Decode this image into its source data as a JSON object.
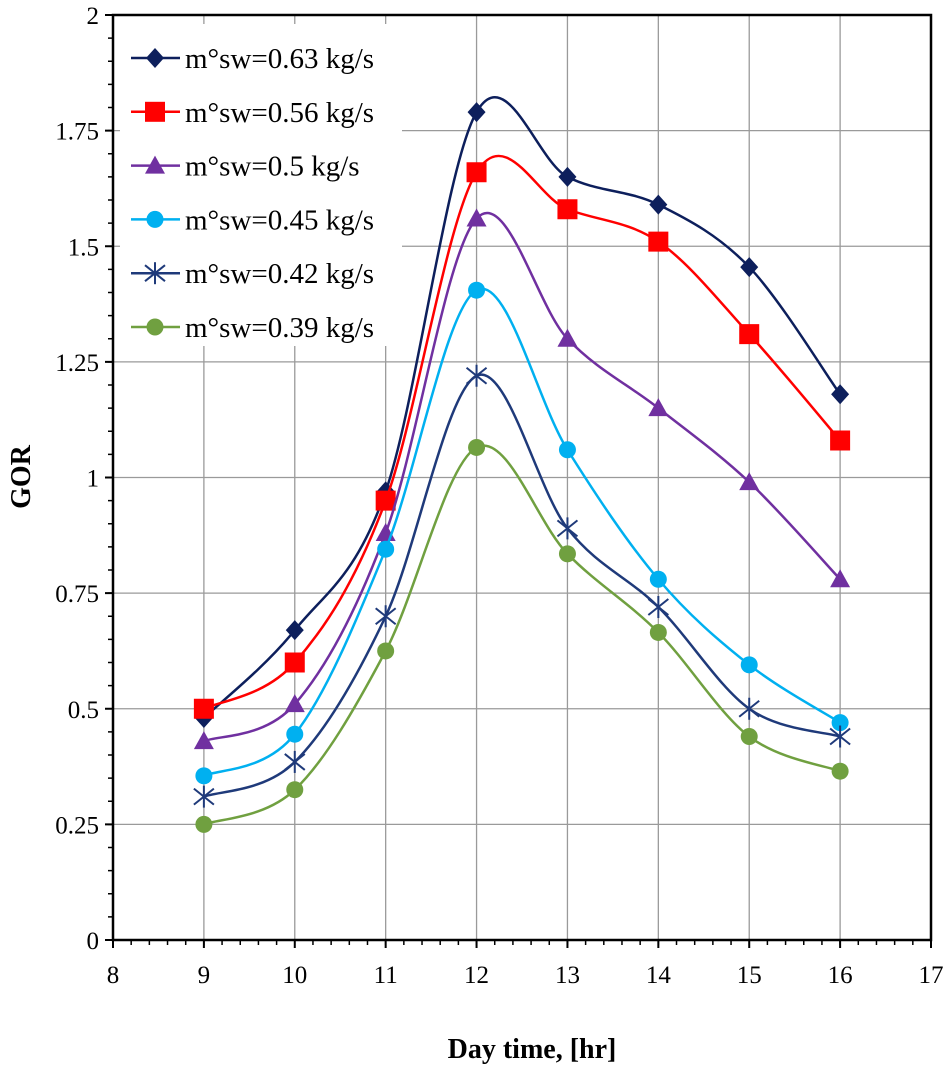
{
  "chart_data": {
    "type": "line",
    "title": "",
    "xlabel": "Day time, [hr]",
    "ylabel": "GOR",
    "xlim": [
      8,
      17
    ],
    "ylim": [
      0,
      2
    ],
    "xticks": [
      "8",
      "9",
      "10",
      "11",
      "12",
      "13",
      "14",
      "15",
      "16",
      "17"
    ],
    "yticks": [
      "0",
      "0.25",
      "0.5",
      "0.75",
      "1",
      "1.25",
      "1.5",
      "1.75",
      "2"
    ],
    "grid": true,
    "smooth": true,
    "legend_position": "top-left",
    "x": [
      9,
      10,
      11,
      12,
      13,
      14,
      15,
      16
    ],
    "series": [
      {
        "name": "m°sw=0.63 kg/s",
        "color": "#0d1f5c",
        "marker": "diamond",
        "values": [
          0.48,
          0.67,
          0.97,
          1.79,
          1.65,
          1.59,
          1.455,
          1.18
        ]
      },
      {
        "name": "m°sw=0.56 kg/s",
        "color": "#ff0000",
        "marker": "square",
        "values": [
          0.5,
          0.6,
          0.95,
          1.66,
          1.58,
          1.51,
          1.31,
          1.08
        ]
      },
      {
        "name": "m°sw=0.5 kg/s",
        "color": "#7030a0",
        "marker": "triangle",
        "values": [
          0.43,
          0.51,
          0.88,
          1.56,
          1.3,
          1.15,
          0.99,
          0.78
        ]
      },
      {
        "name": "m°sw=0.45 kg/s",
        "color": "#00b0f0",
        "marker": "circle",
        "values": [
          0.355,
          0.445,
          0.845,
          1.405,
          1.06,
          0.78,
          0.595,
          0.47
        ]
      },
      {
        "name": "m°sw=0.42 kg/s",
        "color": "#1f3a7a",
        "marker": "asterisk",
        "values": [
          0.31,
          0.385,
          0.7,
          1.22,
          0.89,
          0.72,
          0.5,
          0.44
        ]
      },
      {
        "name": "m°sw=0.39 kg/s",
        "color": "#70a040",
        "marker": "circle",
        "values": [
          0.25,
          0.325,
          0.625,
          1.065,
          0.835,
          0.665,
          0.44,
          0.365
        ]
      }
    ]
  }
}
